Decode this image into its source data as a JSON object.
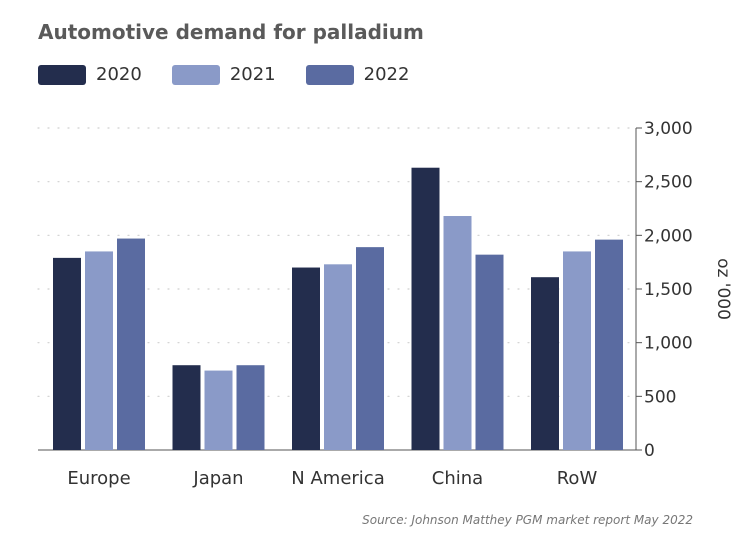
{
  "chart_data": {
    "type": "bar",
    "title": "Automotive demand for palladium",
    "ylabel": "oz '000",
    "ylim": [
      0,
      3000
    ],
    "yticks": [
      "0",
      "500",
      "1,000",
      "1,500",
      "2,000",
      "2,500",
      "3,000"
    ],
    "categories": [
      "Europe",
      "Japan",
      "N America",
      "China",
      "RoW"
    ],
    "series": [
      {
        "name": "2020",
        "color": "#232d4d",
        "values": [
          1790,
          790,
          1700,
          2630,
          1610
        ]
      },
      {
        "name": "2021",
        "color": "#8a9ac8",
        "values": [
          1850,
          740,
          1730,
          2180,
          1850
        ]
      },
      {
        "name": "2022",
        "color": "#5a6ba1",
        "values": [
          1970,
          790,
          1890,
          1820,
          1960
        ]
      }
    ],
    "grid": true,
    "legend_position": "top-left",
    "source": "Source: Johnson Matthey PGM market report May 2022"
  }
}
